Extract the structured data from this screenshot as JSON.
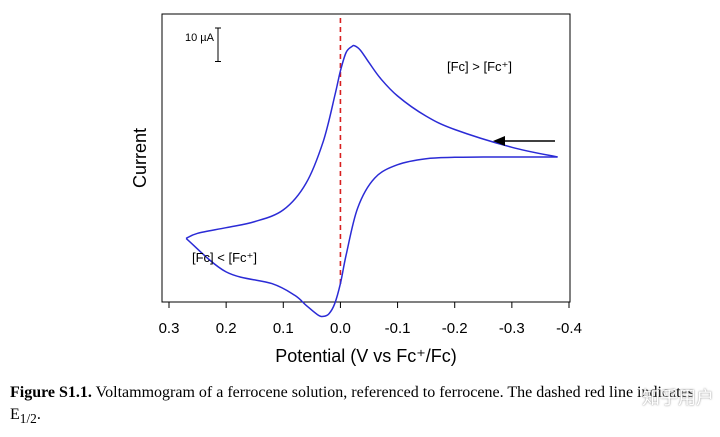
{
  "chart_data": {
    "type": "line",
    "title": "",
    "xlabel": "Potential (V vs Fc⁺/Fc)",
    "ylabel": "Current",
    "xlim": [
      0.3,
      -0.4
    ],
    "x_ticks": [
      "0.3",
      "0.2",
      "0.1",
      "0.0",
      "-0.1",
      "-0.2",
      "-0.3",
      "-0.4"
    ],
    "x_tick_values": [
      0.3,
      0.2,
      0.1,
      0.0,
      -0.1,
      -0.2,
      -0.3,
      -0.4
    ],
    "ylim": [
      -38,
      48
    ],
    "y_unit": "µA",
    "scale_bar": {
      "label": "10 µA",
      "value": 10
    },
    "series": [
      {
        "color": "#2b2bd6",
        "forward_scan": {
          "x": [
            -0.38,
            -0.3,
            -0.2,
            -0.15,
            -0.1,
            -0.07,
            -0.05,
            -0.035,
            -0.025,
            -0.02,
            -0.01,
            0.0,
            0.01,
            0.03,
            0.06,
            0.1,
            0.15,
            0.2,
            0.25,
            0.27
          ],
          "y": [
            5.3,
            8.2,
            13.5,
            17.5,
            23.5,
            28.8,
            33.5,
            37.2,
            38.5,
            38.3,
            36.5,
            31,
            23.5,
            10,
            -2.5,
            -10.5,
            -14,
            -15.8,
            -17.5,
            -19
          ]
        },
        "reverse_scan": {
          "x": [
            0.27,
            0.2,
            0.12,
            0.08,
            0.06,
            0.04,
            0.03,
            0.02,
            0.01,
            0.0,
            -0.01,
            -0.03,
            -0.06,
            -0.1,
            -0.15,
            -0.2,
            -0.25,
            -0.3,
            -0.38
          ],
          "y": [
            -19,
            -29,
            -32.5,
            -36,
            -39,
            -41.8,
            -42.3,
            -41.5,
            -38.5,
            -32.5,
            -24,
            -10,
            -1,
            3,
            4.8,
            5.2,
            5.3,
            5.3,
            5.3
          ]
        }
      }
    ],
    "vline": {
      "x": 0.0,
      "color": "#d81f1f",
      "style": "dashed",
      "label": "E1/2"
    },
    "annotations": [
      {
        "text": "[Fc] > [Fc⁺]"
      },
      {
        "text": "[Fc] < [Fc⁺]"
      }
    ],
    "scan_direction": "arrow pointing left (cathodic → anodic)",
    "grid": false,
    "legend": "none"
  },
  "caption": {
    "label": "Figure S1.1.",
    "text": " Voltammogram of a ferrocene solution, referenced to ferrocene. The dashed red line indicates E",
    "subscript": "1/2",
    "end": "."
  },
  "watermark": "知乎用户"
}
